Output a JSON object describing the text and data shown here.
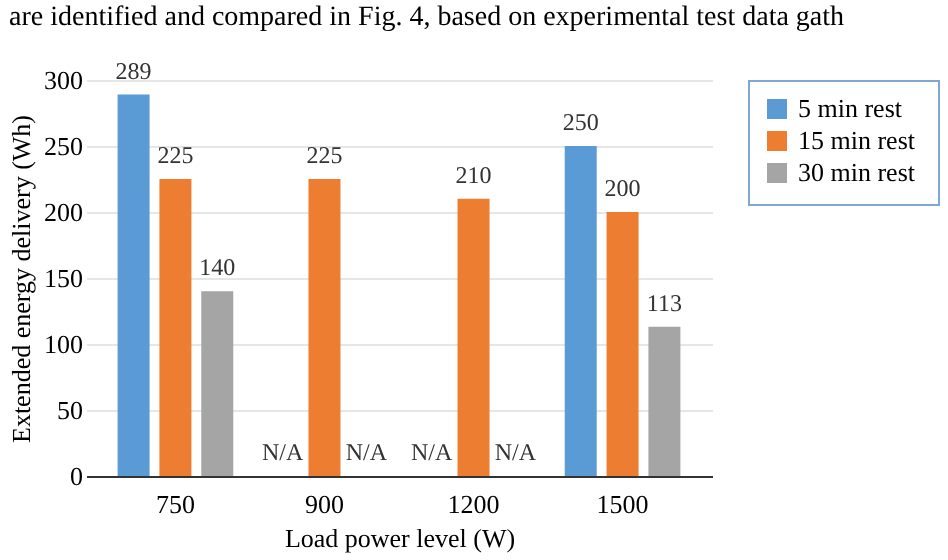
{
  "chart_data": {
    "type": "bar",
    "annotations": [
      "are identified and compared in Fig. 4, based on experimental test data gath"
    ],
    "xlabel": "Load power level (W)",
    "ylabel": "Extended energy delivery (Wh)",
    "categories": [
      "750",
      "900",
      "1200",
      "1500"
    ],
    "series": [
      {
        "name": "5 min  rest",
        "color": "#5b9bd5",
        "values": [
          289,
          null,
          null,
          250
        ],
        "value_labels": [
          "289",
          "N/A",
          "N/A",
          "250"
        ]
      },
      {
        "name": "15 min  rest",
        "color": "#ed7d31",
        "values": [
          225,
          225,
          210,
          200
        ],
        "value_labels": [
          "225",
          "225",
          "210",
          "200"
        ]
      },
      {
        "name": "30 min  rest",
        "color": "#a5a5a5",
        "values": [
          140,
          null,
          null,
          113
        ],
        "value_labels": [
          "140",
          "N/A",
          "N/A",
          "113"
        ]
      }
    ],
    "ylim": [
      0,
      300
    ],
    "yticks": [
      0,
      50,
      100,
      150,
      200,
      250,
      300
    ],
    "grid": "y",
    "legend": "right"
  }
}
